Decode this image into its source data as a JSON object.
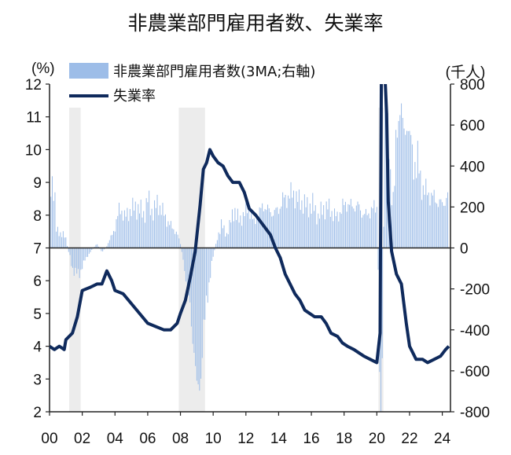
{
  "chart_data": {
    "type": "bar+line",
    "title": "非農業部門雇用者数、失業率",
    "left_axis": {
      "label": "(%)",
      "range": [
        2,
        12
      ],
      "ticks": [
        2,
        3,
        4,
        5,
        6,
        7,
        8,
        9,
        10,
        11,
        12
      ]
    },
    "right_axis": {
      "label": "(千人)",
      "range": [
        -800,
        800
      ],
      "ticks": [
        -800,
        -600,
        -400,
        -200,
        0,
        200,
        400,
        600,
        800
      ]
    },
    "x_axis": {
      "range": [
        2000,
        2024.5
      ],
      "ticks": [
        2000,
        2002,
        2004,
        2006,
        2008,
        2010,
        2012,
        2014,
        2016,
        2018,
        2020,
        2022,
        2024
      ],
      "tick_labels": [
        "00",
        "02",
        "04",
        "06",
        "08",
        "10",
        "12",
        "14",
        "16",
        "18",
        "20",
        "22",
        "24"
      ]
    },
    "recessions": [
      [
        2001.2,
        2001.9
      ],
      [
        2007.9,
        2009.5
      ],
      [
        2020.1,
        2020.4
      ]
    ],
    "legend": {
      "position": "top",
      "bar_label": "非農業部門雇用者数(3MA;右軸)",
      "line_label": "失業率"
    },
    "colors": {
      "bars": "#9dbde8",
      "line": "#0f2a5c",
      "recession": "#ececec"
    },
    "series": [
      {
        "name": "非農業部門雇用者数(3MA;右軸)",
        "kind": "bar",
        "axis": "right",
        "points": [
          [
            2000.0,
            240
          ],
          [
            2000.2,
            300
          ],
          [
            2000.3,
            330
          ],
          [
            2000.4,
            100
          ],
          [
            2000.6,
            60
          ],
          [
            2000.8,
            80
          ],
          [
            2001.0,
            40
          ],
          [
            2001.2,
            -30
          ],
          [
            2001.4,
            -100
          ],
          [
            2001.6,
            -120
          ],
          [
            2001.8,
            -130
          ],
          [
            2002.0,
            -90
          ],
          [
            2002.3,
            -40
          ],
          [
            2002.6,
            -10
          ],
          [
            2002.9,
            20
          ],
          [
            2003.2,
            -20
          ],
          [
            2003.5,
            10
          ],
          [
            2003.8,
            60
          ],
          [
            2004.0,
            100
          ],
          [
            2004.3,
            200
          ],
          [
            2004.6,
            150
          ],
          [
            2004.9,
            180
          ],
          [
            2005.2,
            200
          ],
          [
            2005.5,
            190
          ],
          [
            2005.8,
            160
          ],
          [
            2006.0,
            240
          ],
          [
            2006.3,
            170
          ],
          [
            2006.6,
            220
          ],
          [
            2006.9,
            180
          ],
          [
            2007.2,
            130
          ],
          [
            2007.5,
            100
          ],
          [
            2007.8,
            70
          ],
          [
            2008.0,
            20
          ],
          [
            2008.2,
            -80
          ],
          [
            2008.4,
            -180
          ],
          [
            2008.6,
            -320
          ],
          [
            2008.8,
            -480
          ],
          [
            2009.0,
            -650
          ],
          [
            2009.2,
            -700
          ],
          [
            2009.4,
            -450
          ],
          [
            2009.6,
            -250
          ],
          [
            2009.8,
            -150
          ],
          [
            2010.0,
            -40
          ],
          [
            2010.3,
            60
          ],
          [
            2010.5,
            120
          ],
          [
            2010.8,
            60
          ],
          [
            2011.0,
            110
          ],
          [
            2011.3,
            190
          ],
          [
            2011.6,
            130
          ],
          [
            2011.9,
            170
          ],
          [
            2012.2,
            200
          ],
          [
            2012.5,
            120
          ],
          [
            2012.8,
            170
          ],
          [
            2013.1,
            210
          ],
          [
            2013.4,
            180
          ],
          [
            2013.7,
            170
          ],
          [
            2014.0,
            190
          ],
          [
            2014.3,
            240
          ],
          [
            2014.6,
            250
          ],
          [
            2014.9,
            270
          ],
          [
            2015.2,
            230
          ],
          [
            2015.5,
            220
          ],
          [
            2015.8,
            200
          ],
          [
            2016.1,
            210
          ],
          [
            2016.4,
            150
          ],
          [
            2016.7,
            190
          ],
          [
            2017.0,
            200
          ],
          [
            2017.3,
            170
          ],
          [
            2017.6,
            150
          ],
          [
            2017.9,
            200
          ],
          [
            2018.2,
            220
          ],
          [
            2018.5,
            200
          ],
          [
            2018.8,
            210
          ],
          [
            2019.1,
            170
          ],
          [
            2019.4,
            160
          ],
          [
            2019.7,
            190
          ],
          [
            2020.0,
            200
          ],
          [
            2020.1,
            -200
          ],
          [
            2020.2,
            -800
          ],
          [
            2020.3,
            -800
          ],
          [
            2020.5,
            800
          ],
          [
            2020.6,
            800
          ],
          [
            2020.8,
            350
          ],
          [
            2021.0,
            250
          ],
          [
            2021.3,
            600
          ],
          [
            2021.5,
            700
          ],
          [
            2021.7,
            550
          ],
          [
            2021.9,
            580
          ],
          [
            2022.1,
            550
          ],
          [
            2022.3,
            400
          ],
          [
            2022.5,
            420
          ],
          [
            2022.7,
            320
          ],
          [
            2022.9,
            280
          ],
          [
            2023.1,
            270
          ],
          [
            2023.4,
            250
          ],
          [
            2023.7,
            230
          ],
          [
            2024.0,
            210
          ],
          [
            2024.2,
            240
          ],
          [
            2024.4,
            260
          ]
        ]
      },
      {
        "name": "失業率",
        "kind": "line",
        "axis": "left",
        "points": [
          [
            2000.0,
            4.0
          ],
          [
            2000.3,
            3.9
          ],
          [
            2000.6,
            4.0
          ],
          [
            2000.9,
            3.9
          ],
          [
            2001.0,
            4.2
          ],
          [
            2001.4,
            4.4
          ],
          [
            2001.7,
            4.9
          ],
          [
            2002.0,
            5.7
          ],
          [
            2002.5,
            5.8
          ],
          [
            2002.9,
            5.9
          ],
          [
            2003.2,
            5.9
          ],
          [
            2003.5,
            6.3
          ],
          [
            2003.8,
            6.0
          ],
          [
            2004.0,
            5.7
          ],
          [
            2004.5,
            5.6
          ],
          [
            2005.0,
            5.3
          ],
          [
            2005.5,
            5.0
          ],
          [
            2006.0,
            4.7
          ],
          [
            2006.5,
            4.6
          ],
          [
            2007.0,
            4.5
          ],
          [
            2007.4,
            4.5
          ],
          [
            2007.8,
            4.7
          ],
          [
            2008.0,
            5.0
          ],
          [
            2008.3,
            5.4
          ],
          [
            2008.6,
            6.1
          ],
          [
            2008.9,
            6.9
          ],
          [
            2009.2,
            8.3
          ],
          [
            2009.4,
            9.4
          ],
          [
            2009.6,
            9.6
          ],
          [
            2009.8,
            10.0
          ],
          [
            2010.0,
            9.8
          ],
          [
            2010.3,
            9.6
          ],
          [
            2010.6,
            9.5
          ],
          [
            2010.9,
            9.2
          ],
          [
            2011.2,
            9.0
          ],
          [
            2011.6,
            9.0
          ],
          [
            2011.9,
            8.7
          ],
          [
            2012.2,
            8.2
          ],
          [
            2012.6,
            8.0
          ],
          [
            2012.9,
            7.8
          ],
          [
            2013.2,
            7.6
          ],
          [
            2013.5,
            7.4
          ],
          [
            2013.8,
            7.0
          ],
          [
            2014.1,
            6.7
          ],
          [
            2014.4,
            6.2
          ],
          [
            2014.7,
            5.9
          ],
          [
            2015.0,
            5.6
          ],
          [
            2015.3,
            5.4
          ],
          [
            2015.6,
            5.1
          ],
          [
            2015.9,
            5.0
          ],
          [
            2016.2,
            4.9
          ],
          [
            2016.6,
            4.9
          ],
          [
            2016.9,
            4.7
          ],
          [
            2017.2,
            4.4
          ],
          [
            2017.6,
            4.3
          ],
          [
            2017.9,
            4.1
          ],
          [
            2018.2,
            4.0
          ],
          [
            2018.6,
            3.9
          ],
          [
            2018.9,
            3.8
          ],
          [
            2019.2,
            3.7
          ],
          [
            2019.6,
            3.6
          ],
          [
            2020.0,
            3.5
          ],
          [
            2020.2,
            4.4
          ],
          [
            2020.3,
            14.7
          ],
          [
            2020.4,
            13.3
          ],
          [
            2020.6,
            11.1
          ],
          [
            2020.7,
            8.4
          ],
          [
            2020.9,
            6.9
          ],
          [
            2021.2,
            6.2
          ],
          [
            2021.5,
            5.9
          ],
          [
            2021.8,
            4.7
          ],
          [
            2022.0,
            4.0
          ],
          [
            2022.4,
            3.6
          ],
          [
            2022.8,
            3.6
          ],
          [
            2023.1,
            3.5
          ],
          [
            2023.5,
            3.6
          ],
          [
            2023.9,
            3.7
          ],
          [
            2024.2,
            3.9
          ],
          [
            2024.4,
            4.0
          ]
        ]
      }
    ]
  }
}
